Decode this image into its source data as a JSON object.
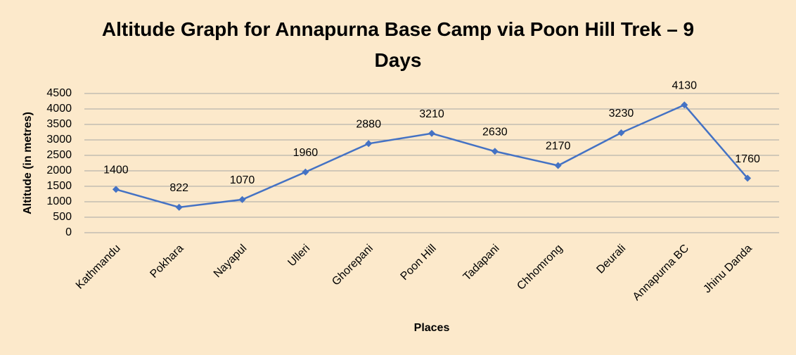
{
  "chart_data": {
    "type": "line",
    "title": "Altitude Graph for Annapurna Base Camp via Poon Hill Trek – 9 Days",
    "x_label": "Places",
    "y_label": "Altitude (in metres)",
    "categories": [
      "Kathmandu",
      "Pokhara",
      "Nayapul",
      "Ulleri",
      "Ghorepani",
      "Poon Hill",
      "Tadapani",
      "Chhomrong",
      "Deurali",
      "Annapurna BC",
      "Jhinu Danda"
    ],
    "series": [
      {
        "name": "Altitude",
        "color": "#4472c4",
        "values": [
          1400,
          822,
          1070,
          1960,
          2880,
          3210,
          2630,
          2170,
          3230,
          4130,
          1760
        ]
      }
    ],
    "ylim": [
      0,
      4500
    ],
    "yticks": [
      0,
      500,
      1000,
      1500,
      2000,
      2500,
      3000,
      3500,
      4000,
      4500
    ],
    "grid": true
  }
}
